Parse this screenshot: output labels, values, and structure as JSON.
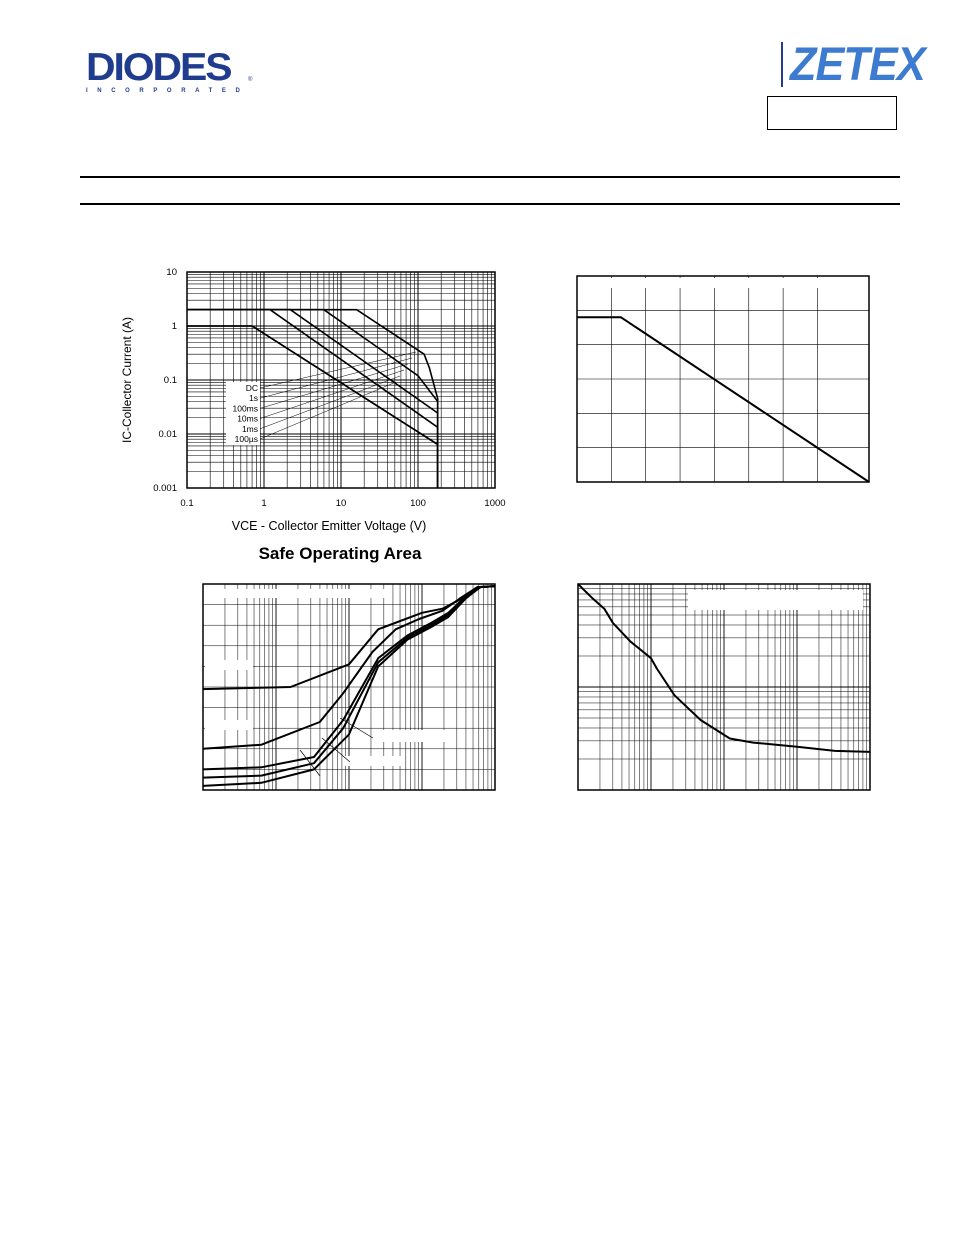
{
  "header": {
    "logo_left": {
      "word": "DIODES",
      "sub": "INCORPORATED",
      "registered": "®"
    },
    "logo_right": {
      "word": "ZETEX"
    },
    "colors": {
      "diodes_blue": "#1f3c8f",
      "zetex_blue": "#3d7bd1"
    }
  },
  "chart_data": [
    {
      "type": "line",
      "title": "Safe Operating Area",
      "xlabel": "VCE - Collector Emitter Voltage (V)",
      "ylabel": "IC-Collector Current (A)",
      "xscale": "log",
      "yscale": "log",
      "xlim": [
        0.1,
        1000
      ],
      "ylim": [
        0.001,
        10
      ],
      "xticks": [
        "0.1",
        "1",
        "10",
        "100",
        "1000"
      ],
      "yticks": [
        "0.001",
        "0.01",
        "0.1",
        "1",
        "10"
      ],
      "grid": true,
      "series": [
        {
          "name": "DC",
          "x": [
            0.1,
            0.7,
            180,
            180
          ],
          "y": [
            1,
            1,
            0.0064,
            0.001
          ]
        },
        {
          "name": "1s",
          "x": [
            0.1,
            0.7,
            180,
            180
          ],
          "y": [
            1,
            1,
            0.0064,
            0.001
          ]
        },
        {
          "name": "100ms",
          "x": [
            0.1,
            0.5,
            1.2,
            180,
            180
          ],
          "y": [
            2,
            2,
            2,
            0.0133,
            0.001
          ]
        },
        {
          "name": "10ms",
          "x": [
            0.1,
            0.5,
            2.2,
            180,
            180
          ],
          "y": [
            2,
            2,
            2,
            0.0245,
            0.001
          ]
        },
        {
          "name": "1ms",
          "x": [
            0.1,
            0.5,
            6,
            100,
            180,
            180
          ],
          "y": [
            2,
            2,
            2,
            0.12,
            0.04,
            0.001
          ]
        },
        {
          "name": "100µs",
          "x": [
            0.1,
            0.5,
            16,
            120,
            140,
            180,
            180
          ],
          "y": [
            2,
            2,
            2,
            0.3,
            0.17,
            0.045,
            0.001
          ]
        }
      ]
    },
    {
      "type": "line",
      "title": "",
      "grid": true,
      "series": [
        {
          "x": [
            0,
            0.15,
            1
          ],
          "y": [
            0.8,
            0.8,
            -0.02
          ]
        }
      ]
    },
    {
      "type": "line",
      "title": "",
      "xscale": "log",
      "grid": true,
      "series": [
        {
          "x": [
            0,
            0.3,
            0.5,
            0.6,
            0.75,
            0.82,
            0.88,
            0.94,
            1
          ],
          "y": [
            0.49,
            0.5,
            0.61,
            0.78,
            0.86,
            0.88,
            0.925,
            0.985,
            0.99
          ]
        },
        {
          "x": [
            0,
            0.2,
            0.4,
            0.48,
            0.58,
            0.66,
            0.74,
            0.82,
            0.88,
            0.94,
            1
          ],
          "y": [
            0.2,
            0.22,
            0.33,
            0.47,
            0.67,
            0.78,
            0.83,
            0.87,
            0.93,
            0.985,
            0.99
          ]
        },
        {
          "x": [
            0,
            0.2,
            0.38,
            0.48,
            0.6,
            0.7,
            0.78,
            0.84,
            0.9,
            0.95,
            1
          ],
          "y": [
            0.1,
            0.11,
            0.16,
            0.34,
            0.64,
            0.75,
            0.81,
            0.86,
            0.94,
            0.985,
            0.99
          ]
        },
        {
          "x": [
            0,
            0.2,
            0.38,
            0.48,
            0.6,
            0.7,
            0.78,
            0.84,
            0.9,
            0.95,
            1
          ],
          "y": [
            0.06,
            0.07,
            0.13,
            0.3,
            0.62,
            0.74,
            0.8,
            0.85,
            0.94,
            0.985,
            0.99
          ]
        },
        {
          "x": [
            0,
            0.2,
            0.38,
            0.5,
            0.6,
            0.7,
            0.78,
            0.84,
            0.9,
            0.95,
            1
          ],
          "y": [
            0.02,
            0.035,
            0.1,
            0.27,
            0.6,
            0.73,
            0.79,
            0.84,
            0.93,
            0.985,
            0.99
          ]
        }
      ]
    },
    {
      "type": "line",
      "title": "",
      "xscale": "log",
      "grid": true,
      "series": [
        {
          "x": [
            0,
            0.05,
            0.09,
            0.12,
            0.18,
            0.25,
            0.27,
            0.33,
            0.42,
            0.52,
            0.6,
            0.75,
            0.88,
            1
          ],
          "y": [
            1,
            0.93,
            0.88,
            0.81,
            0.72,
            0.64,
            0.59,
            0.46,
            0.34,
            0.25,
            0.23,
            0.21,
            0.19,
            0.185
          ]
        }
      ]
    }
  ]
}
